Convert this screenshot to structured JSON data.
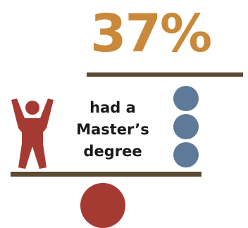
{
  "stat": {
    "value": "37%"
  },
  "caption": {
    "line1": "had a",
    "line2": "Master’s",
    "line3": "degree"
  },
  "colors": {
    "stat_text": "#c8893a",
    "rule": "#5b4a31",
    "person": "#a53a32",
    "blue_circles": "#5e7a99",
    "red_circle": "#a53a32"
  },
  "icons": {
    "figure": "person-arms-raised-icon"
  }
}
